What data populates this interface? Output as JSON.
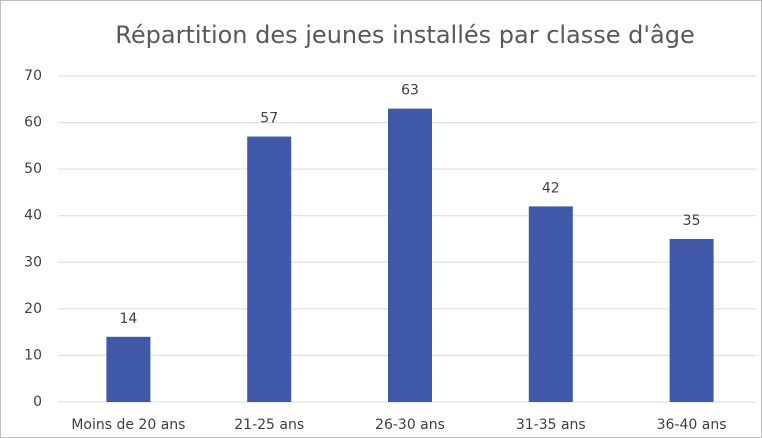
{
  "chart_data": {
    "type": "bar",
    "title": "Répartition des jeunes installés par classe d'âge",
    "categories": [
      "Moins de 20 ans",
      "21-25 ans",
      "26-30 ans",
      "31-35 ans",
      "36-40 ans"
    ],
    "values": [
      14,
      57,
      63,
      42,
      35
    ],
    "color": "#3f58a7",
    "ylim": [
      0,
      70
    ],
    "yticks": [
      0,
      10,
      20,
      30,
      40,
      50,
      60,
      70
    ],
    "grid": true
  }
}
